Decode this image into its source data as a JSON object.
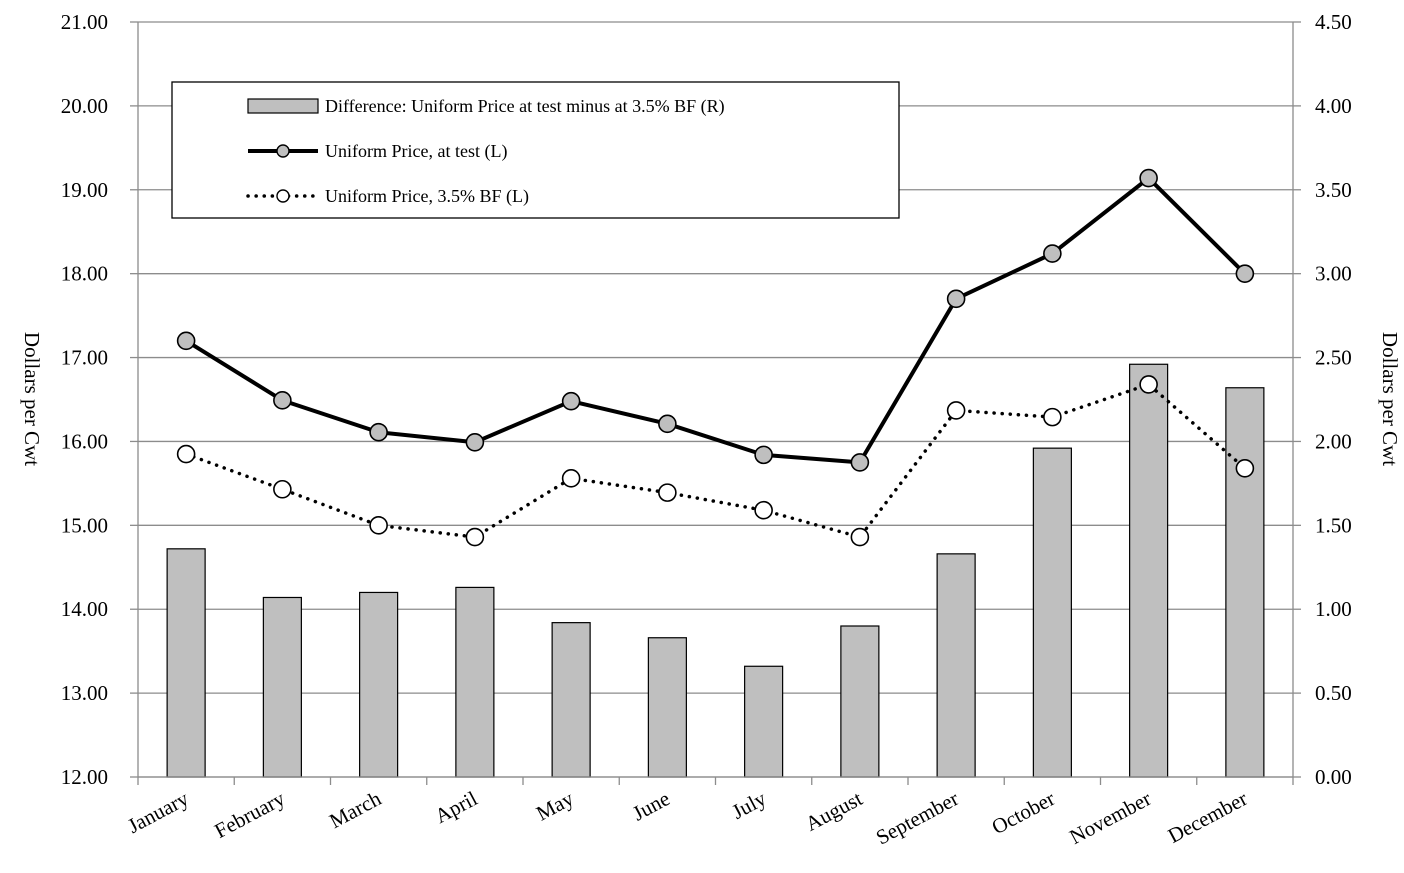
{
  "chart_data": {
    "type": "bar",
    "categories": [
      "January",
      "February",
      "March",
      "April",
      "May",
      "June",
      "July",
      "August",
      "September",
      "October",
      "November",
      "December"
    ],
    "series": [
      {
        "name": "Difference: Uniform Price at test minus at 3.5% BF (R)",
        "type": "bar",
        "axis": "right",
        "color": "#bfbfbf",
        "values": [
          1.36,
          1.07,
          1.1,
          1.13,
          0.92,
          0.83,
          0.66,
          0.9,
          1.33,
          1.96,
          2.46,
          2.32
        ]
      },
      {
        "name": "Uniform Price, at test (L)",
        "type": "line",
        "axis": "left",
        "style": "solid",
        "color": "#000000",
        "marker_fill": "#bfbfbf",
        "values": [
          17.2,
          16.49,
          16.11,
          15.99,
          16.48,
          16.21,
          15.84,
          15.75,
          17.7,
          18.24,
          19.14,
          18.0
        ]
      },
      {
        "name": "Uniform Price, 3.5% BF (L)",
        "type": "line",
        "axis": "left",
        "style": "dotted",
        "color": "#000000",
        "marker_fill": "#ffffff",
        "values": [
          15.85,
          15.43,
          15.0,
          14.86,
          15.56,
          15.39,
          15.18,
          14.86,
          16.37,
          16.29,
          16.68,
          15.68
        ]
      }
    ],
    "y_left": {
      "label": "Dollars per Cwt",
      "min": 12,
      "max": 21,
      "step": 1,
      "ticks": [
        "12.00",
        "13.00",
        "14.00",
        "15.00",
        "16.00",
        "17.00",
        "18.00",
        "19.00",
        "20.00",
        "21.00"
      ]
    },
    "y_right": {
      "label": "Dollars per Cwt",
      "min": 0,
      "max": 4.5,
      "step": 0.5,
      "ticks": [
        "0.00",
        "0.50",
        "1.00",
        "1.50",
        "2.00",
        "2.50",
        "3.00",
        "3.50",
        "4.00",
        "4.50"
      ]
    },
    "grid": true,
    "legend_position": "top-left"
  }
}
